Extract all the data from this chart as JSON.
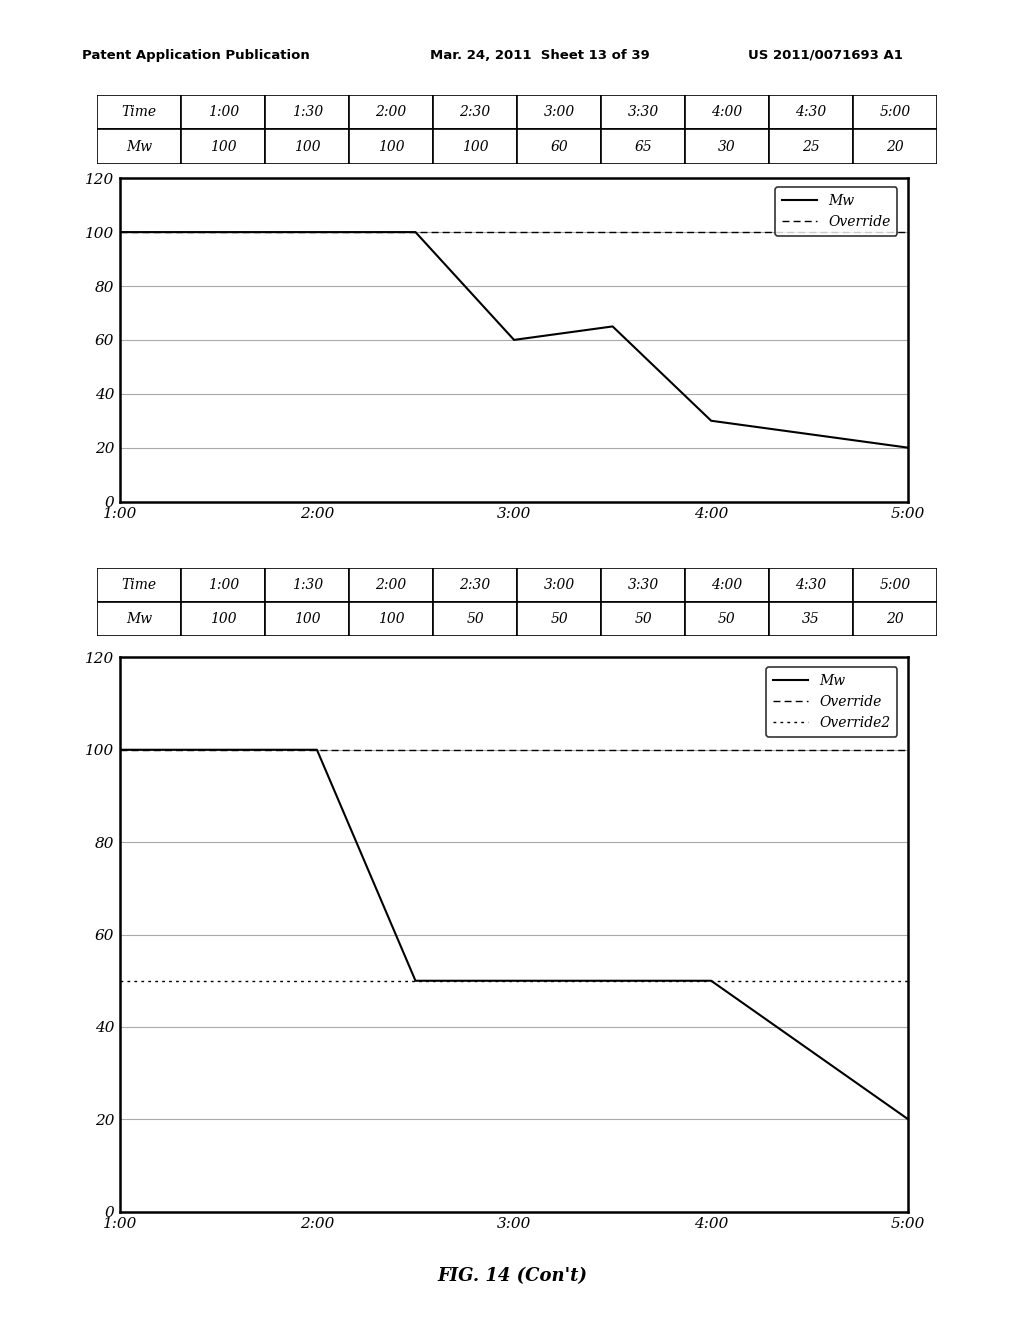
{
  "header_left": "Patent Application Publication",
  "header_mid": "Mar. 24, 2011  Sheet 13 of 39",
  "header_right": "US 2011/0071693 A1",
  "footer_text": "FIG. 14 (Con't)",
  "table1_headers": [
    "Time",
    "1:00",
    "1:30",
    "2:00",
    "2:30",
    "3:00",
    "3:30",
    "4:00",
    "4:30",
    "5:00"
  ],
  "table1_row": [
    "Mw",
    "100",
    "100",
    "100",
    "100",
    "60",
    "65",
    "30",
    "25",
    "20"
  ],
  "chart1_x": [
    1.0,
    1.5,
    2.0,
    2.5,
    3.0,
    3.5,
    4.0,
    4.5,
    5.0
  ],
  "chart1_mw": [
    100,
    100,
    100,
    100,
    60,
    65,
    30,
    25,
    20
  ],
  "chart1_override": 100,
  "chart1_override2": null,
  "table2_headers": [
    "Time",
    "1:00",
    "1:30",
    "2:00",
    "2:30",
    "3:00",
    "3:30",
    "4:00",
    "4:30",
    "5:00"
  ],
  "table2_row": [
    "Mw",
    "100",
    "100",
    "100",
    "50",
    "50",
    "50",
    "50",
    "35",
    "20"
  ],
  "chart2_x": [
    1.0,
    1.5,
    2.0,
    2.5,
    3.0,
    3.5,
    4.0,
    4.5,
    5.0
  ],
  "chart2_mw": [
    100,
    100,
    100,
    50,
    50,
    50,
    50,
    35,
    20
  ],
  "chart2_override": 100,
  "chart2_override2": 50,
  "ylim": [
    0,
    120
  ],
  "yticks": [
    0,
    20,
    40,
    60,
    80,
    100,
    120
  ],
  "xticks": [
    1.0,
    2.0,
    3.0,
    4.0,
    5.0
  ],
  "xticklabels": [
    "1:00",
    "2:00",
    "3:00",
    "4:00",
    "5:00"
  ],
  "xlim": [
    1.0,
    5.0
  ],
  "bg_color": "#ffffff",
  "grid_color": "#aaaaaa",
  "line_color": "#000000",
  "override_color": "#555555"
}
